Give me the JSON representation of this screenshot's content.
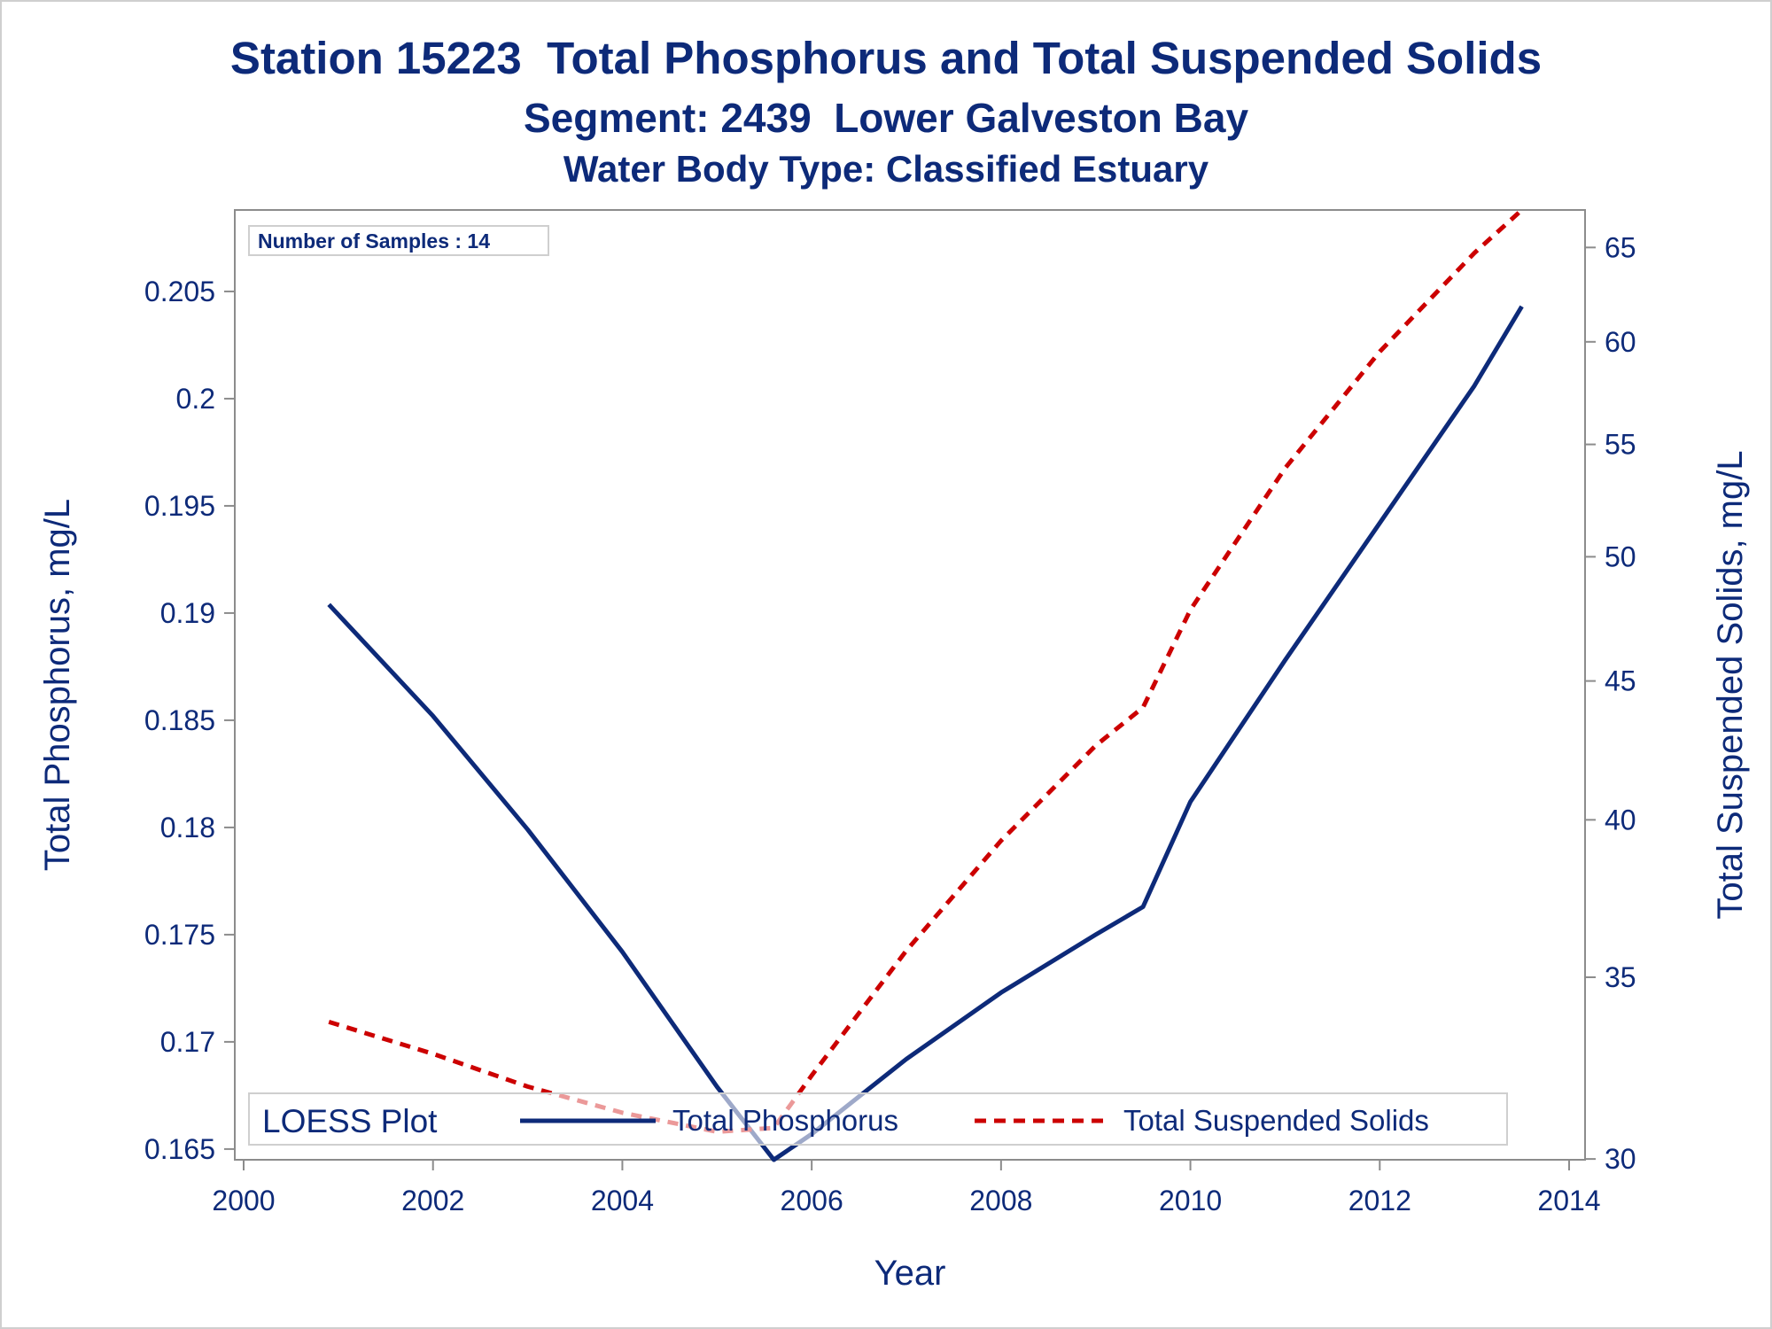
{
  "chart_data": {
    "type": "line",
    "title": "Station 15223  Total Phosphorus and Total Suspended Solids",
    "subtitle": "Segment: 2439  Lower Galveston Bay",
    "subtitle2": "Water Body Type: Classified Estuary",
    "xlabel": "Year",
    "ylabel_left": "Total Phosphorus, mg/L",
    "ylabel_right": "Total Suspended Solids, mg/L",
    "xlim": [
      2000,
      2014
    ],
    "x_ticks": [
      2000,
      2002,
      2004,
      2006,
      2008,
      2010,
      2012,
      2014
    ],
    "ylim_left": [
      0.1645,
      0.2088
    ],
    "y_ticks_left": [
      0.165,
      0.17,
      0.175,
      0.18,
      0.185,
      0.19,
      0.195,
      0.2,
      0.205
    ],
    "y_tick_labels_left": [
      "0.165",
      "0.17",
      "0.175",
      "0.18",
      "0.185",
      "0.19",
      "0.195",
      "0.2",
      "0.205"
    ],
    "y_scale_right": "log",
    "ylim_right": [
      29.98,
      67.1
    ],
    "y_ticks_right": [
      30,
      35,
      40,
      45,
      50,
      55,
      60,
      65
    ],
    "inset_label": "Number of Samples : 14",
    "legend": {
      "title": "LOESS Plot",
      "position": "bottom-inside",
      "entries": [
        {
          "label": "Total Phosphorus",
          "style": "solid",
          "color": "#0d2a79"
        },
        {
          "label": "Total Suspended Solids",
          "style": "dashed",
          "color": "#cc0000"
        }
      ]
    },
    "series": [
      {
        "name": "Total Phosphorus",
        "axis": "left",
        "color": "#0d2a79",
        "style": "solid",
        "x": [
          2000.9,
          2002,
          2003,
          2004,
          2005,
          2005.6,
          2006,
          2007,
          2008,
          2009,
          2009.5,
          2010,
          2011,
          2012,
          2013,
          2013.5
        ],
        "y": [
          0.1904,
          0.1852,
          0.1799,
          0.1742,
          0.1679,
          0.1645,
          0.1657,
          0.1692,
          0.1723,
          0.175,
          0.1763,
          0.1812,
          0.1878,
          0.1942,
          0.2006,
          0.2043
        ]
      },
      {
        "name": "Total Suspended Solids",
        "axis": "right",
        "color": "#cc0000",
        "style": "dashed",
        "x": [
          2000.9,
          2002,
          2003,
          2004,
          2005,
          2005.6,
          2006,
          2007,
          2008,
          2009,
          2009.5,
          2010,
          2011,
          2012,
          2013,
          2013.5
        ],
        "y": [
          33.7,
          32.8,
          31.9,
          31.2,
          30.7,
          30.8,
          32.2,
          35.8,
          39.3,
          42.6,
          44.0,
          47.8,
          53.9,
          59.5,
          64.7,
          67.1
        ]
      }
    ]
  }
}
